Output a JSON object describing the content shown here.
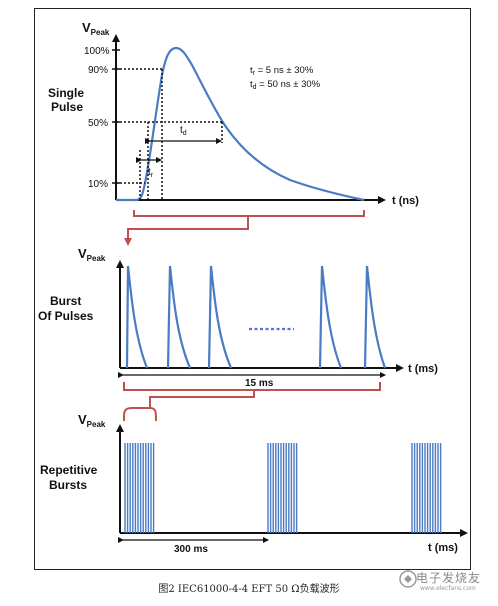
{
  "single_pulse": {
    "title_line1": "Single",
    "title_line2": "Pulse",
    "ylabel_main": "V",
    "ylabel_sub": "Peak",
    "xlabel": "t (ns)",
    "ticks": [
      "100%",
      "90%",
      "50%",
      "10%"
    ],
    "tr_label": "t",
    "tr_sub": "r",
    "td_label": "t",
    "td_sub": "d",
    "note1_a": "t",
    "note1_sub": "r",
    "note1_b": " = 5 ns ± 30%",
    "note2_a": "t",
    "note2_sub": "d",
    "note2_b": " = 50 ns ± 30%"
  },
  "burst": {
    "title_line1": "Burst",
    "title_line2": "Of Pulses",
    "ylabel_main": "V",
    "ylabel_sub": "Peak",
    "xlabel": "t (ms)",
    "span_label": "15 ms"
  },
  "repetitive": {
    "title_line1": "Repetitive",
    "title_line2": "Bursts",
    "ylabel_main": "V",
    "ylabel_sub": "Peak",
    "xlabel": "t (ms)",
    "span_label": "300 ms"
  },
  "caption": "图2 IEC61000-4-4 EFT 50 Ω负载波形",
  "watermark": {
    "text": "电子发烧友",
    "url": "www.elecfans.com"
  },
  "colors": {
    "waveform": "#4a7bc4",
    "bracket": "#c0504d",
    "axis": "#111111"
  }
}
